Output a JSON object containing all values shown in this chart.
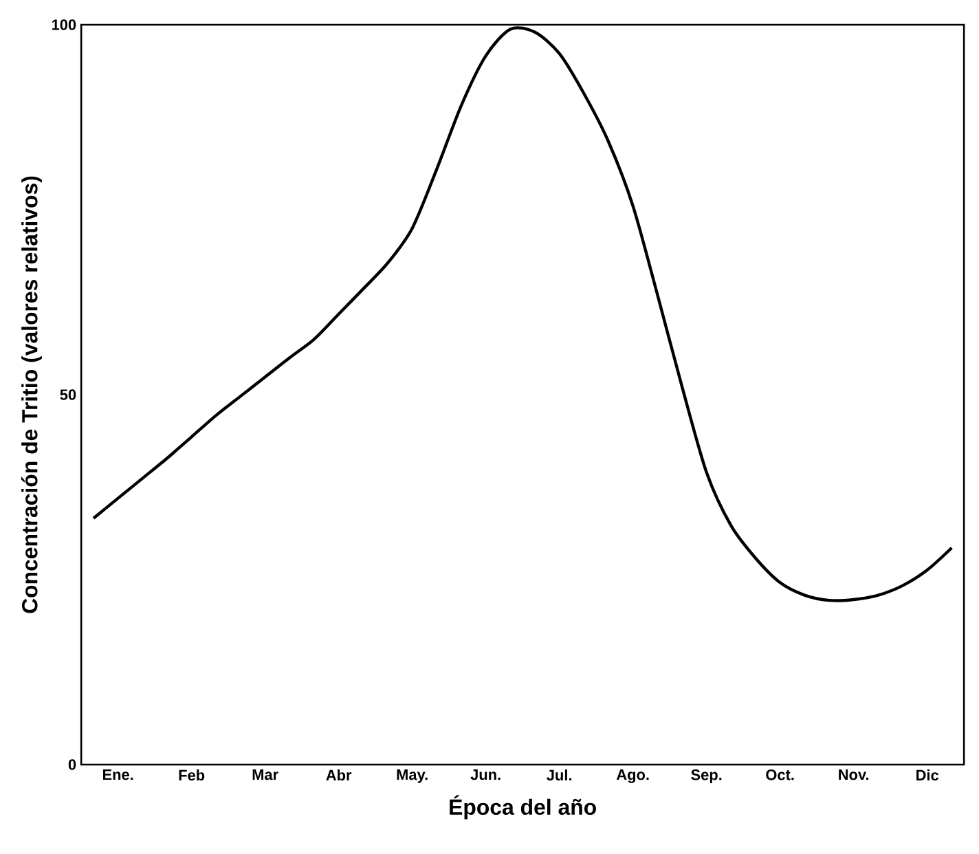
{
  "chart_data": {
    "type": "line",
    "xlabel": "Época del año",
    "ylabel": "Concentración de Tritio (valores relativos)",
    "categories": [
      null,
      "Ene.",
      null,
      null,
      "Feb",
      null,
      null,
      "Mar",
      null,
      null,
      "Abr",
      null,
      null,
      "May.",
      null,
      null,
      "Jun.",
      null,
      null,
      "Jul.",
      null,
      null,
      "Ago.",
      null,
      null,
      "Sep.",
      null,
      null,
      "Oct.",
      null,
      null,
      "Nov.",
      null,
      null,
      "Dic",
      null
    ],
    "ylim": [
      0,
      100
    ],
    "yticks": [
      0,
      50,
      100
    ],
    "grid": false,
    "marker": "none",
    "line_style": "solid",
    "series": [
      {
        "color": "#000000",
        "values": [
          33.3,
          36,
          38.7,
          41.4,
          44.3,
          47.2,
          49.8,
          52.4,
          55,
          57.5,
          60.9,
          64.3,
          67.8,
          72.5,
          80.5,
          89.1,
          95.8,
          99.4,
          99,
          96.1,
          90.7,
          84.2,
          75.5,
          63.5,
          51.1,
          39.5,
          32.3,
          27.9,
          24.6,
          22.9,
          22.2,
          22.3,
          22.9,
          24.2,
          26.3,
          29.3
        ]
      }
    ]
  }
}
